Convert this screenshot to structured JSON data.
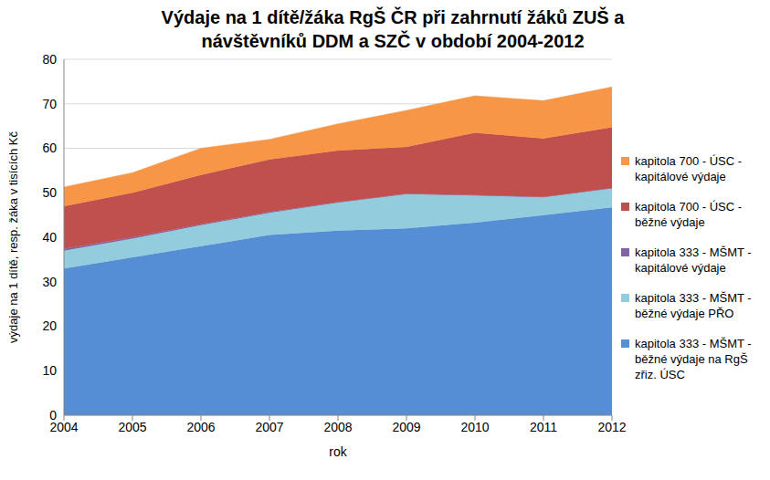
{
  "chart_data": {
    "type": "area",
    "title": "Výdaje na 1 dítě/žáka RgŠ ČR při zahrnutí žáků ZUŠ a návštěvníků DDM a SZČ v období 2004-2012",
    "x_label": "rok",
    "y_label": "výdaje na 1 dítě, resp. žáka v tisících Kč",
    "categories": [
      "2004",
      "2005",
      "2006",
      "2007",
      "2008",
      "2009",
      "2010",
      "2011",
      "2012"
    ],
    "series": [
      {
        "name": "kapitola 333 - MŠMT - běžné výdaje na RgŠ zřiz. ÚSC",
        "color": "#558ED5",
        "values": [
          33,
          35.5,
          38,
          40.5,
          41.5,
          42,
          43.3,
          45,
          46.7
        ]
      },
      {
        "name": "kapitola 333 - MŠMT - běžné výdaje PŘO",
        "color": "#93CDDD",
        "values": [
          4,
          4.2,
          4.7,
          5,
          6.3,
          7.7,
          6.1,
          4,
          4.3
        ]
      },
      {
        "name": "kapitola 333 - MŠMT - kapitálové výdaje",
        "color": "#8064A2",
        "values": [
          0.4,
          0.3,
          0.2,
          0.2,
          0.1,
          0.1,
          0.1,
          0.1,
          0.1
        ]
      },
      {
        "name": "kapitola 700 - ÚSC - běžné výdaje",
        "color": "#C0504D",
        "values": [
          9.6,
          10,
          11.1,
          11.8,
          11.6,
          10.5,
          14,
          13.1,
          13.6
        ]
      },
      {
        "name": "kapitola 700 - ÚSC - kapitálové výdaje",
        "color": "#F79646",
        "values": [
          4.3,
          4.5,
          6,
          4.5,
          6,
          8.2,
          8.3,
          8.5,
          9.1
        ]
      }
    ],
    "ylim": [
      0,
      80
    ],
    "yticks": [
      0,
      10,
      20,
      30,
      40,
      50,
      60,
      70,
      80
    ],
    "grid": true,
    "stacked": true,
    "legend": "right"
  }
}
